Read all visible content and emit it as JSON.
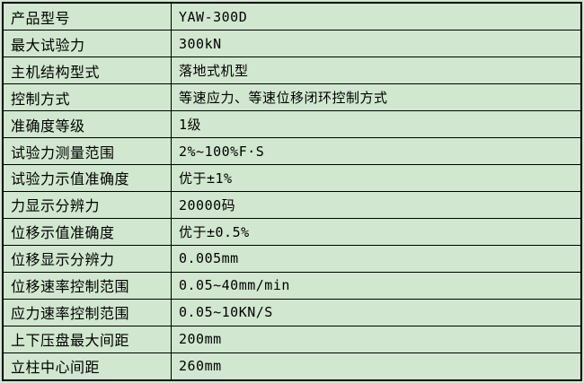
{
  "page": {
    "background_color": "#d1e7cf",
    "border_color": "#000000",
    "text_color": "#000000"
  },
  "table": {
    "rows": [
      {
        "label": "产品型号",
        "value": "YAW-300D"
      },
      {
        "label": "最大试验力",
        "value": "300kN"
      },
      {
        "label": "主机结构型式",
        "value": "落地式机型"
      },
      {
        "label": "控制方式",
        "value": "等速应力、等速位移闭环控制方式"
      },
      {
        "label": "准确度等级",
        "value": "1级"
      },
      {
        "label": "试验力测量范围",
        "value": "2%~100%F·S"
      },
      {
        "label": "试验力示值准确度",
        "value": "优于±1%"
      },
      {
        "label": "力显示分辨力",
        "value": "20000码"
      },
      {
        "label": "位移示值准确度",
        "value": "优于±0.5%"
      },
      {
        "label": "位移显示分辨力",
        "value": "0.005mm"
      },
      {
        "label": "位移速率控制范围",
        "value": "0.05~40mm/min"
      },
      {
        "label": "应力速率控制范围",
        "value": "0.05~10KN/S"
      },
      {
        "label": "上下压盘最大间距",
        "value": "200mm"
      },
      {
        "label": "立柱中心间距",
        "value": "260mm"
      }
    ]
  }
}
